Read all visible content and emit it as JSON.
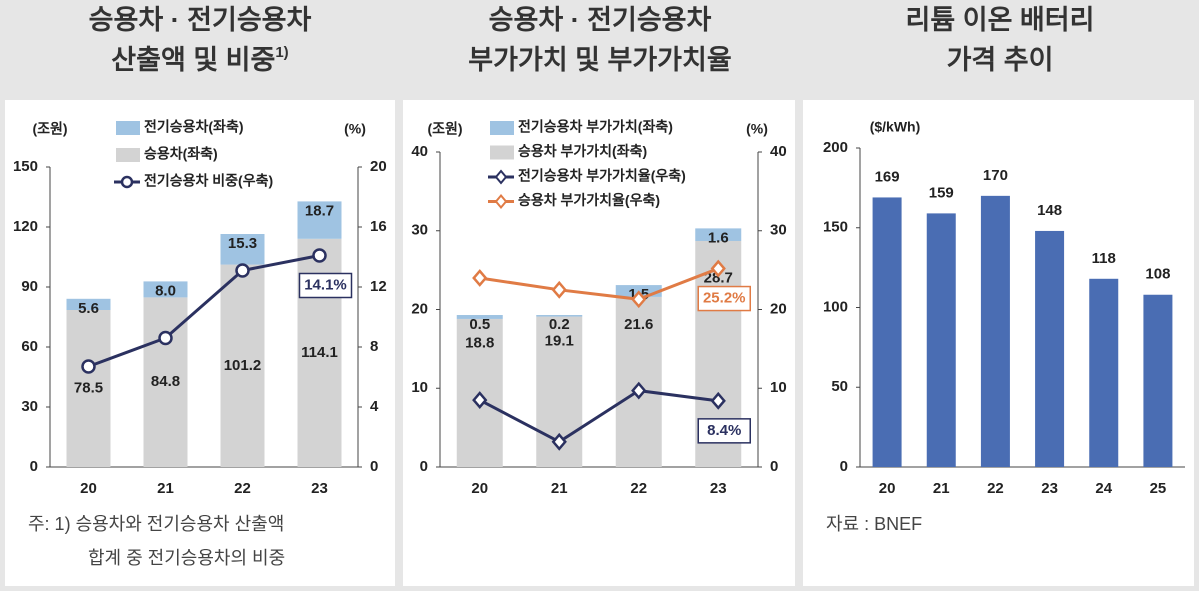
{
  "chart_data": [
    {
      "type": "combo",
      "title": [
        "승용차 · 전기승용차",
        "산출액 및 비중"
      ],
      "title_note": "1)",
      "y_unit": "(조원)",
      "y2_unit": "(%)",
      "categories": [
        "20",
        "21",
        "22",
        "23"
      ],
      "series": [
        {
          "name": "전기승용차(좌축)",
          "type": "bar",
          "color": "#9fc3e2",
          "values": [
            5.6,
            8.0,
            15.3,
            18.7
          ],
          "value_labels": [
            "5.6",
            "8.0",
            "15.3",
            "18.7"
          ]
        },
        {
          "name": "승용차(좌축)",
          "type": "bar",
          "color": "#d3d3d3",
          "values": [
            78.5,
            84.8,
            101.2,
            114.1
          ]
        },
        {
          "name": "전기승용차 비중(우축)",
          "type": "line",
          "axis": "y2",
          "color": "#2b3160",
          "marker": "circle",
          "values": [
            6.7,
            8.6,
            13.1,
            14.1
          ],
          "value_labels": [
            null,
            null,
            null,
            "14.1%"
          ]
        }
      ],
      "ylim": [
        0,
        150
      ],
      "yticks": [
        0,
        30,
        60,
        90,
        120,
        150
      ],
      "y2lim": [
        0,
        20
      ],
      "y2ticks": [
        0,
        4,
        8,
        12,
        16,
        20
      ],
      "note": [
        "주:  1) 승용차와 전기승용차 산출액",
        "합계 중 전기승용차의 비중"
      ]
    },
    {
      "type": "combo",
      "title": [
        "승용차 · 전기승용차",
        "부가가치 및 부가가치율"
      ],
      "y_unit": "(조원)",
      "y2_unit": "(%)",
      "categories": [
        "20",
        "21",
        "22",
        "23"
      ],
      "series": [
        {
          "name": "전기승용차 부가가치(좌축)",
          "type": "bar",
          "color": "#9fc3e2",
          "values": [
            0.5,
            0.2,
            1.5,
            1.6
          ]
        },
        {
          "name": "승용차 부가가치(좌축)",
          "type": "bar",
          "color": "#d3d3d3",
          "values": [
            18.8,
            19.1,
            21.6,
            28.7
          ]
        },
        {
          "name": "전기승용차 부가가치율(우축)",
          "type": "line",
          "axis": "y2",
          "color": "#2b3160",
          "marker": "diamond",
          "values": [
            8.5,
            3.2,
            9.7,
            8.4
          ],
          "value_labels": [
            null,
            null,
            null,
            "8.4%"
          ]
        },
        {
          "name": "승용차 부가가치율(우축)",
          "type": "line",
          "axis": "y2",
          "color": "#e07b45",
          "marker": "diamond",
          "values": [
            24.0,
            22.5,
            21.3,
            25.2
          ],
          "value_labels": [
            null,
            null,
            null,
            "25.2%"
          ]
        }
      ],
      "ylim": [
        0,
        40
      ],
      "yticks": [
        0,
        10,
        20,
        30,
        40
      ],
      "y2lim": [
        0,
        40
      ],
      "y2ticks": [
        0,
        10,
        20,
        30,
        40
      ]
    },
    {
      "type": "bar",
      "title": [
        "리튬 이온 배터리",
        "가격 추이"
      ],
      "y_unit": "($/kWh)",
      "categories": [
        "20",
        "21",
        "22",
        "23",
        "24",
        "25"
      ],
      "values": [
        169,
        159,
        170,
        148,
        118,
        108
      ],
      "color": "#4a6db3",
      "ylim": [
        0,
        200
      ],
      "yticks": [
        0,
        50,
        100,
        150,
        200
      ],
      "source": "자료 : BNEF"
    }
  ]
}
